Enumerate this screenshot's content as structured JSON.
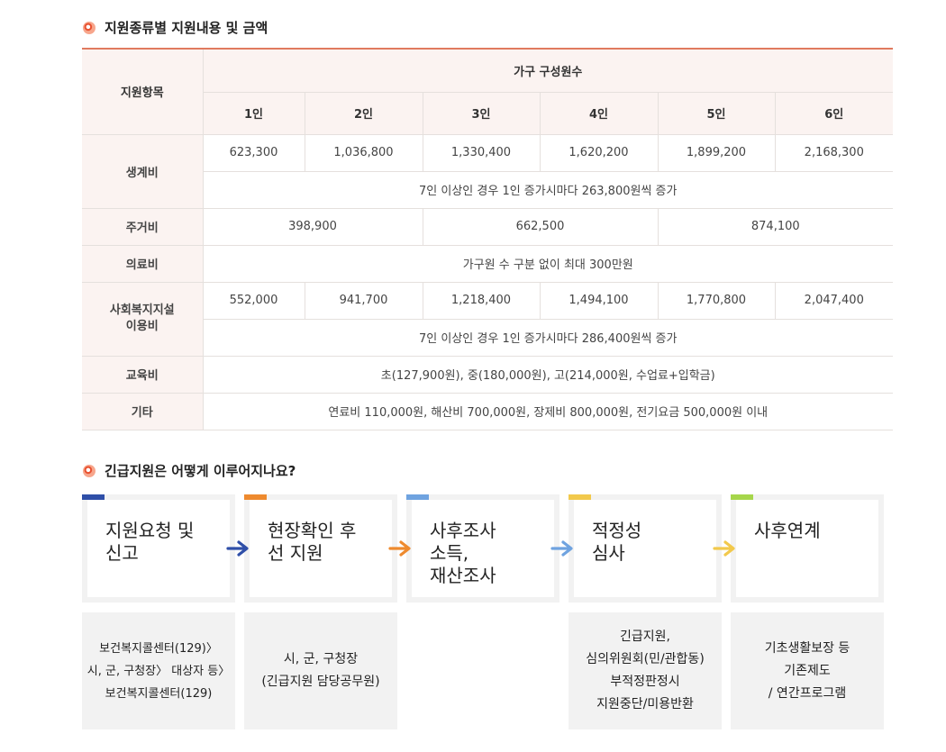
{
  "section1": {
    "title": "지원종류별 지원내용 및 금액"
  },
  "table": {
    "header_item": "지원항목",
    "header_group": "가구 구성원수",
    "columns": [
      "1인",
      "2인",
      "3인",
      "4인",
      "5인",
      "6인"
    ],
    "living": {
      "label": "생계비",
      "values": [
        "623,300",
        "1,036,800",
        "1,330,400",
        "1,620,200",
        "1,899,200",
        "2,168,300"
      ],
      "note": "7인 이상인 경우 1인 증가시마다 263,800원씩 증가"
    },
    "housing": {
      "label": "주거비",
      "values": [
        "398,900",
        "662,500",
        "874,100"
      ]
    },
    "medical": {
      "label": "의료비",
      "note": "가구원 수 구분 없이 최대 300만원"
    },
    "welfare": {
      "label_line1": "사회복지지설",
      "label_line2": "이용비",
      "values": [
        "552,000",
        "941,700",
        "1,218,400",
        "1,494,100",
        "1,770,800",
        "2,047,400"
      ],
      "note": "7인 이상인 경우 1인 증가시마다 286,400원씩 증가"
    },
    "education": {
      "label": "교육비",
      "note": "초(127,900원), 중(180,000원), 고(214,000원, 수업료+입학금)"
    },
    "etc": {
      "label": "기타",
      "note": "연료비 110,000원, 해산비 700,000원, 장제비 800,000원, 전기요금 500,000원 이내"
    }
  },
  "section2": {
    "title": "긴급지원은 어떻게 이루어지나요?"
  },
  "flow": {
    "steps": [
      {
        "lines": [
          "지원요청 및",
          "신고"
        ],
        "color": "#2f4fa8"
      },
      {
        "lines": [
          "현장확인 후",
          "선 지원"
        ],
        "color": "#ee8a2e"
      },
      {
        "lines": [
          "사후조사",
          "소득,",
          "재산조사"
        ],
        "color": "#6fa3e0"
      },
      {
        "lines": [
          "적정성",
          "심사"
        ],
        "color": "#f2c94c"
      },
      {
        "lines": [
          "사후연계"
        ],
        "color": "#a6d64b"
      }
    ],
    "arrow_colors": [
      "#2f4fa8",
      "#ee8a2e",
      "#6fa3e0",
      "#f2c94c"
    ],
    "descriptions": [
      {
        "lines": [
          "보건복지콜센터(129)〉",
          "시, 군, 구청장〉 대상자 등〉",
          "보건복지콜센터(129)"
        ]
      },
      {
        "lines": [
          "시, 군, 구청장",
          "(긴급지원 담당공무원)"
        ]
      },
      {
        "lines": [
          "긴급지원,",
          "심의위원회(민/관합동)",
          "부적정판정시",
          "지원중단/미용반환"
        ]
      },
      {
        "lines": [
          "기초생활보장 등",
          "기존제도",
          "/ 연간프로그램"
        ]
      }
    ]
  }
}
